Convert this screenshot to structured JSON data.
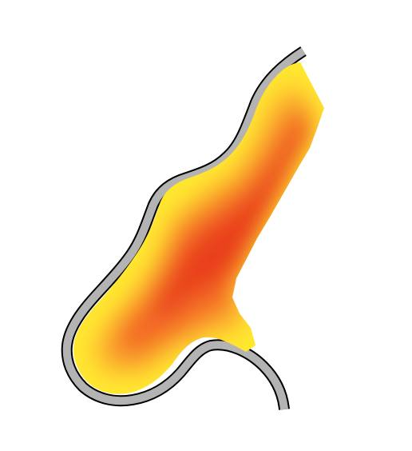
{
  "map": {
    "kind": "heatmap-overlay-on-river-channel",
    "background_color": "#ffffff",
    "bank_fill_color": "#b3b3b3",
    "bank_outline_color": "#000000",
    "heat_palette": {
      "low": "#ffe830",
      "mid_low": "#ffc030",
      "mid": "#f79a2a",
      "mid_high": "#f46b25",
      "high": "#e9401f"
    },
    "labels": []
  }
}
